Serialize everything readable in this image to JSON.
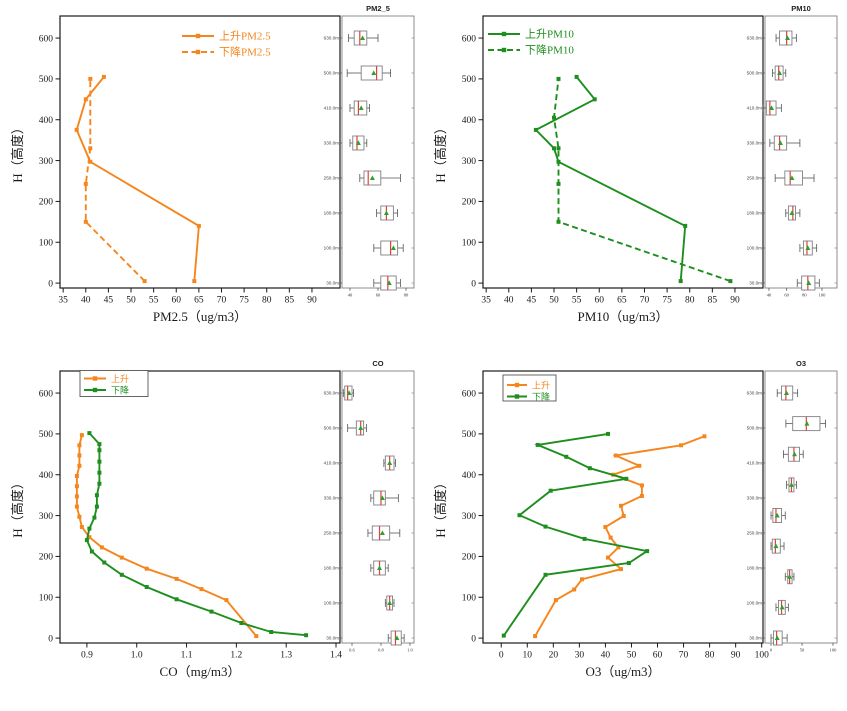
{
  "figure": {
    "colors": {
      "ascend_orange": "#F5861D",
      "descend_green": "#1E8F1E",
      "axis": "#1a1a1a",
      "box_stroke": "#808080",
      "box_median_red": "#E04040",
      "box_mean_green": "#2FA02F",
      "box_fill": "#ffffff"
    }
  },
  "chart_data": [
    {
      "id": "pm25",
      "type": "line",
      "box_title": "PM2_5",
      "xlabel": "PM2.5（ug/m3）",
      "ylabel": "H（高度）",
      "x_tick_values": [
        35,
        40,
        45,
        50,
        55,
        60,
        65,
        70,
        75,
        80,
        85,
        90
      ],
      "x_tick_labels": [
        "35",
        "40",
        "45",
        "50",
        "55",
        "60",
        "65",
        "70",
        "75",
        "80",
        "85",
        "90"
      ],
      "y_tick_values": [
        0,
        100,
        200,
        300,
        400,
        500,
        600
      ],
      "y_tick_labels": [
        "0",
        "100",
        "200",
        "300",
        "400",
        "500",
        "600"
      ],
      "xlim": [
        34.3,
        96.2
      ],
      "ylim": [
        -12,
        654
      ],
      "series": [
        {
          "name": "上升PM2.5",
          "color": "orange",
          "dash": false,
          "points": [
            [
              64,
              5
            ],
            [
              65,
              140
            ],
            [
              41,
              297
            ],
            [
              38,
              375
            ],
            [
              40,
              450
            ],
            [
              44,
              505
            ]
          ]
        },
        {
          "name": "下降PM2.5",
          "color": "orange",
          "dash": true,
          "points": [
            [
              53,
              5
            ],
            [
              40,
              150
            ],
            [
              40,
              243
            ],
            [
              41,
              330
            ],
            [
              41,
              500
            ]
          ]
        }
      ],
      "box_x_tick_values": [
        40,
        60,
        80
      ],
      "box_x_tick_labels": [
        "40",
        "60",
        "80"
      ],
      "box_xlim": [
        34.3,
        85.7
      ],
      "box_height_labels": [
        "630.0m",
        "500.0m",
        "410.0m",
        "330.0m",
        "250.0m",
        "180.0m",
        "100.0m",
        "30.0m"
      ],
      "boxes": [
        {
          "label": "630.0m",
          "lo": 39,
          "q1": 43,
          "med": 47,
          "q3": 52,
          "hi": 60,
          "mean": 49
        },
        {
          "label": "500.0m",
          "lo": 38,
          "q1": 48,
          "med": 59,
          "q3": 63,
          "hi": 69,
          "mean": 57
        },
        {
          "label": "410.0m",
          "lo": 40,
          "q1": 43,
          "med": 46,
          "q3": 52,
          "hi": 54,
          "mean": 48
        },
        {
          "label": "330.0m",
          "lo": 40,
          "q1": 42,
          "med": 45,
          "q3": 50,
          "hi": 52,
          "mean": 46
        },
        {
          "label": "250.0m",
          "lo": 47,
          "q1": 50,
          "med": 53,
          "q3": 62,
          "hi": 76,
          "mean": 56
        },
        {
          "label": "180.0m",
          "lo": 59,
          "q1": 62,
          "med": 66,
          "q3": 71,
          "hi": 74,
          "mean": 66
        },
        {
          "label": "100.0m",
          "lo": 57,
          "q1": 62,
          "med": 69,
          "q3": 74,
          "hi": 78,
          "mean": 71
        },
        {
          "label": "30.0m",
          "lo": 57,
          "q1": 62,
          "med": 67,
          "q3": 73,
          "hi": 76,
          "mean": 68
        }
      ]
    },
    {
      "id": "pm10",
      "type": "line",
      "box_title": "PM10",
      "xlabel": "PM10（ug/m3）",
      "ylabel": "H（高度）",
      "x_tick_values": [
        35,
        40,
        45,
        50,
        55,
        60,
        65,
        70,
        75,
        80,
        85,
        90
      ],
      "x_tick_labels": [
        "35",
        "40",
        "45",
        "50",
        "55",
        "60",
        "65",
        "70",
        "75",
        "80",
        "85",
        "90"
      ],
      "y_tick_values": [
        0,
        100,
        200,
        300,
        400,
        500,
        600
      ],
      "y_tick_labels": [
        "0",
        "100",
        "200",
        "300",
        "400",
        "500",
        "600"
      ],
      "xlim": [
        34.3,
        96.2
      ],
      "ylim": [
        -12,
        654
      ],
      "series": [
        {
          "name": "上升PM10",
          "color": "green",
          "dash": false,
          "points": [
            [
              78,
              5
            ],
            [
              79,
              140
            ],
            [
              51,
              297
            ],
            [
              50,
              330
            ],
            [
              46,
              375
            ],
            [
              59,
              450
            ],
            [
              55,
              505
            ]
          ]
        },
        {
          "name": "下降PM10",
          "color": "green",
          "dash": true,
          "points": [
            [
              89,
              5
            ],
            [
              51,
              150
            ],
            [
              51,
              243
            ],
            [
              51,
              330
            ],
            [
              50,
              405
            ],
            [
              51,
              500
            ]
          ]
        }
      ],
      "box_x_tick_values": [
        40,
        60,
        80,
        100
      ],
      "box_x_tick_labels": [
        "40",
        "60",
        "80",
        "100"
      ],
      "box_xlim": [
        35.5,
        117
      ],
      "box_height_labels": [
        "630.0m",
        "500.0m",
        "410.0m",
        "330.0m",
        "250.0m",
        "180.0m",
        "100.0m",
        "30.0m"
      ],
      "boxes": [
        {
          "label": "630.0m",
          "lo": 48,
          "q1": 52,
          "med": 60,
          "q3": 66,
          "hi": 71,
          "mean": 61
        },
        {
          "label": "500.0m",
          "lo": 44,
          "q1": 47,
          "med": 51,
          "q3": 56,
          "hi": 59,
          "mean": 52
        },
        {
          "label": "410.0m",
          "lo": 33,
          "q1": 37,
          "med": 41,
          "q3": 48,
          "hi": 54,
          "mean": 43
        },
        {
          "label": "330.0m",
          "lo": 41,
          "q1": 46,
          "med": 52,
          "q3": 60,
          "hi": 75,
          "mean": 53
        },
        {
          "label": "250.0m",
          "lo": 47,
          "q1": 58,
          "med": 64,
          "q3": 78,
          "hi": 91,
          "mean": 66
        },
        {
          "label": "180.0m",
          "lo": 59,
          "q1": 62,
          "med": 67,
          "q3": 70,
          "hi": 75,
          "mean": 66
        },
        {
          "label": "100.0m",
          "lo": 75,
          "q1": 79,
          "med": 83,
          "q3": 89,
          "hi": 94,
          "mean": 84
        },
        {
          "label": "30.0m",
          "lo": 72,
          "q1": 77,
          "med": 84,
          "q3": 92,
          "hi": 97,
          "mean": 85
        }
      ]
    },
    {
      "id": "co",
      "type": "line",
      "box_title": "CO",
      "xlabel": "CO（mg/m3）",
      "ylabel": "H（高度）",
      "x_tick_values": [
        0.9,
        1.0,
        1.1,
        1.2,
        1.3,
        1.4
      ],
      "x_tick_labels": [
        "0.9",
        "1.0",
        "1.1",
        "1.2",
        "1.3",
        "1.4"
      ],
      "y_tick_values": [
        0,
        100,
        200,
        300,
        400,
        500,
        600
      ],
      "y_tick_labels": [
        "0",
        "100",
        "200",
        "300",
        "400",
        "500",
        "600"
      ],
      "xlim": [
        0.846,
        1.408
      ],
      "ylim": [
        -12,
        654
      ],
      "series": [
        {
          "name": "上升",
          "color": "orange",
          "dash": false,
          "points": [
            [
              1.24,
              5
            ],
            [
              1.18,
              93
            ],
            [
              1.13,
              120
            ],
            [
              1.08,
              145
            ],
            [
              1.02,
              170
            ],
            [
              0.97,
              197
            ],
            [
              0.93,
              222
            ],
            [
              0.905,
              247
            ],
            [
              0.89,
              272
            ],
            [
              0.885,
              297
            ],
            [
              0.88,
              322
            ],
            [
              0.88,
              347
            ],
            [
              0.88,
              372
            ],
            [
              0.88,
              397
            ],
            [
              0.885,
              422
            ],
            [
              0.885,
              447
            ],
            [
              0.885,
              472
            ],
            [
              0.89,
              497
            ]
          ]
        },
        {
          "name": "下降",
          "color": "green",
          "dash": false,
          "points": [
            [
              1.34,
              7
            ],
            [
              1.27,
              15
            ],
            [
              1.21,
              37
            ],
            [
              1.15,
              65
            ],
            [
              1.08,
              95
            ],
            [
              1.02,
              125
            ],
            [
              0.97,
              155
            ],
            [
              0.935,
              185
            ],
            [
              0.91,
              212
            ],
            [
              0.9,
              240
            ],
            [
              0.905,
              268
            ],
            [
              0.915,
              295
            ],
            [
              0.92,
              322
            ],
            [
              0.92,
              350
            ],
            [
              0.925,
              378
            ],
            [
              0.925,
              405
            ],
            [
              0.925,
              432
            ],
            [
              0.925,
              460
            ],
            [
              0.925,
              475
            ],
            [
              0.905,
              502
            ]
          ]
        }
      ],
      "box_x_tick_values": [
        0.6,
        0.8,
        1.0
      ],
      "box_x_tick_labels": [
        "0.6",
        "0.8",
        "1.0"
      ],
      "box_xlim": [
        0.531,
        1.028
      ],
      "box_height_labels": [
        "630.0m",
        "500.0m",
        "410.0m",
        "330.0m",
        "250.0m",
        "180.0m",
        "100.0m",
        "30.0m"
      ],
      "boxes": [
        {
          "label": "630.0m",
          "lo": 0.54,
          "q1": 0.55,
          "med": 0.57,
          "q3": 0.6,
          "hi": 0.61,
          "mean": 0.58
        },
        {
          "label": "500.0m",
          "lo": 0.57,
          "q1": 0.63,
          "med": 0.66,
          "q3": 0.68,
          "hi": 0.7,
          "mean": 0.66
        },
        {
          "label": "410.0m",
          "lo": 0.82,
          "q1": 0.83,
          "med": 0.86,
          "q3": 0.89,
          "hi": 0.9,
          "mean": 0.86
        },
        {
          "label": "330.0m",
          "lo": 0.73,
          "q1": 0.75,
          "med": 0.8,
          "q3": 0.83,
          "hi": 0.92,
          "mean": 0.81
        },
        {
          "label": "250.0m",
          "lo": 0.71,
          "q1": 0.74,
          "med": 0.79,
          "q3": 0.86,
          "hi": 0.93,
          "mean": 0.81
        },
        {
          "label": "180.0m",
          "lo": 0.73,
          "q1": 0.75,
          "med": 0.79,
          "q3": 0.83,
          "hi": 0.85,
          "mean": 0.79
        },
        {
          "label": "100.0m",
          "lo": 0.83,
          "q1": 0.84,
          "med": 0.86,
          "q3": 0.88,
          "hi": 0.89,
          "mean": 0.86
        },
        {
          "label": "30.0m",
          "lo": 0.85,
          "q1": 0.87,
          "med": 0.9,
          "q3": 0.94,
          "hi": 0.96,
          "mean": 0.91
        }
      ]
    },
    {
      "id": "o3",
      "type": "line",
      "box_title": "O3",
      "xlabel": "O3（ug/m3）",
      "ylabel": "H（高度）",
      "x_tick_values": [
        0,
        10,
        20,
        30,
        40,
        50,
        60,
        70,
        80,
        90,
        100
      ],
      "x_tick_labels": [
        "0",
        "10",
        "20",
        "30",
        "40",
        "50",
        "60",
        "70",
        "80",
        "90",
        "100"
      ],
      "y_tick_values": [
        0,
        100,
        200,
        300,
        400,
        500,
        600
      ],
      "y_tick_labels": [
        "0",
        "100",
        "200",
        "300",
        "400",
        "500",
        "600"
      ],
      "xlim": [
        -7,
        100.5
      ],
      "ylim": [
        -12,
        654
      ],
      "series": [
        {
          "name": "上升",
          "color": "orange",
          "dash": false,
          "points": [
            [
              13,
              5
            ],
            [
              21,
              93
            ],
            [
              28,
              119
            ],
            [
              31,
              144
            ],
            [
              46,
              169
            ],
            [
              41,
              197
            ],
            [
              45,
              222
            ],
            [
              42,
              246
            ],
            [
              40,
              272
            ],
            [
              47,
              299
            ],
            [
              46,
              324
            ],
            [
              54,
              348
            ],
            [
              54,
              374
            ],
            [
              43,
              400
            ],
            [
              53,
              422
            ],
            [
              44,
              447
            ],
            [
              69,
              472
            ],
            [
              78,
              494
            ]
          ]
        },
        {
          "name": "下降",
          "color": "green",
          "dash": false,
          "points": [
            [
              1,
              6
            ],
            [
              17,
              155
            ],
            [
              49,
              184
            ],
            [
              56,
              213
            ],
            [
              32,
              243
            ],
            [
              17,
              273
            ],
            [
              7,
              301
            ],
            [
              19,
              361
            ],
            [
              48,
              390
            ],
            [
              34,
              416
            ],
            [
              25,
              444
            ],
            [
              14,
              473
            ],
            [
              41,
              500
            ]
          ]
        }
      ],
      "box_x_tick_values": [
        0,
        50,
        100
      ],
      "box_x_tick_labels": [
        "0",
        "50",
        "100"
      ],
      "box_xlim": [
        -9.7,
        106.5
      ],
      "box_height_labels": [
        "630.0m",
        "500.0m",
        "410.0m",
        "330.0m",
        "250.0m",
        "180.0m",
        "100.0m",
        "30.0m"
      ],
      "boxes": [
        {
          "label": "630.0m",
          "lo": 10,
          "q1": 17,
          "med": 24,
          "q3": 35,
          "hi": 43,
          "mean": 25
        },
        {
          "label": "500.0m",
          "lo": 24,
          "q1": 35,
          "med": 57,
          "q3": 79,
          "hi": 88,
          "mean": 58
        },
        {
          "label": "410.0m",
          "lo": 20,
          "q1": 28,
          "med": 37,
          "q3": 46,
          "hi": 52,
          "mean": 38
        },
        {
          "label": "",
          "lo": 25,
          "q1": 29,
          "med": 33,
          "q3": 37,
          "hi": 41,
          "mean": 33
        },
        {
          "label": "330.0m",
          "lo": 0,
          "q1": 3,
          "med": 8,
          "q3": 17,
          "hi": 23,
          "mean": 10
        },
        {
          "label": "250.0m",
          "lo": 0,
          "q1": 2,
          "med": 7,
          "q3": 15,
          "hi": 21,
          "mean": 8
        },
        {
          "label": "180.0m",
          "lo": 23,
          "q1": 27,
          "med": 30,
          "q3": 34,
          "hi": 37,
          "mean": 30
        },
        {
          "label": "100.0m",
          "lo": 8,
          "q1": 12,
          "med": 17,
          "q3": 23,
          "hi": 28,
          "mean": 18
        },
        {
          "label": "30.0m",
          "lo": 0,
          "q1": 4,
          "med": 9,
          "q3": 18,
          "hi": 26,
          "mean": 10
        }
      ]
    }
  ]
}
